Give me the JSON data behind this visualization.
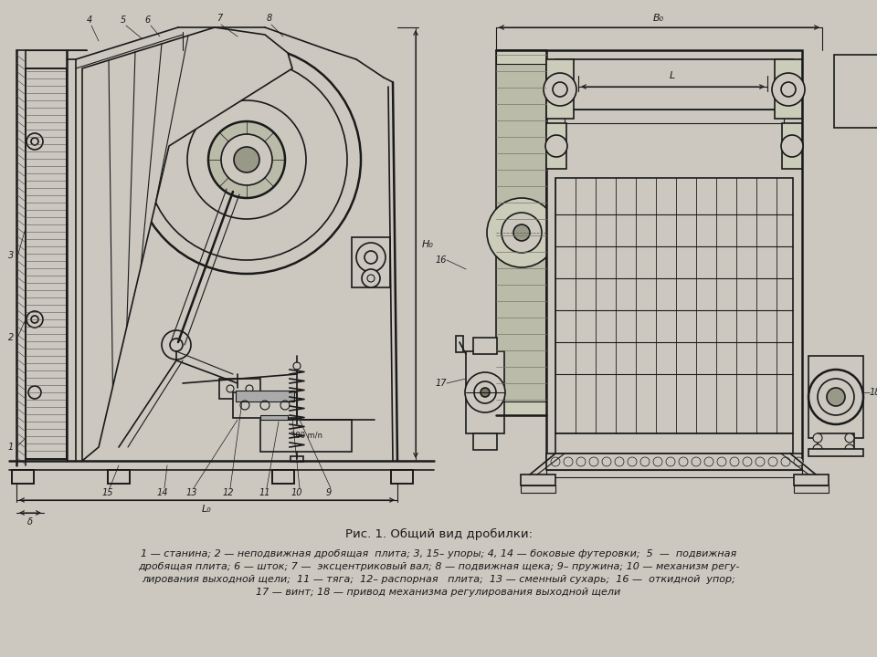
{
  "bg_color": "#ccc8c0",
  "line_color": "#1a1a1a",
  "title": "Рис. 1. Общий вид дробилки:",
  "caption_line1": "1 — станина; 2 — неподвижная дробящая  плита; 3, 15– упоры; 4, 14 — боковые футеровки;  5  —  подвижная",
  "caption_line2": "дробящая плита; 6 — шток; 7 —  эксцентриковый вал; 8 — подвижная щека; 9– пружина; 10 — механизм регу-",
  "caption_line3": "лирования выходной щели;  11 — тяга;  12– распорная   плита;  13 — сменный сухарь;  16 —  откидной  упор;",
  "caption_line4": "17 — винт; 18 — привод механизма регулирования выходной щели",
  "fig_width": 9.6,
  "fig_height": 7.2,
  "dpi": 100
}
